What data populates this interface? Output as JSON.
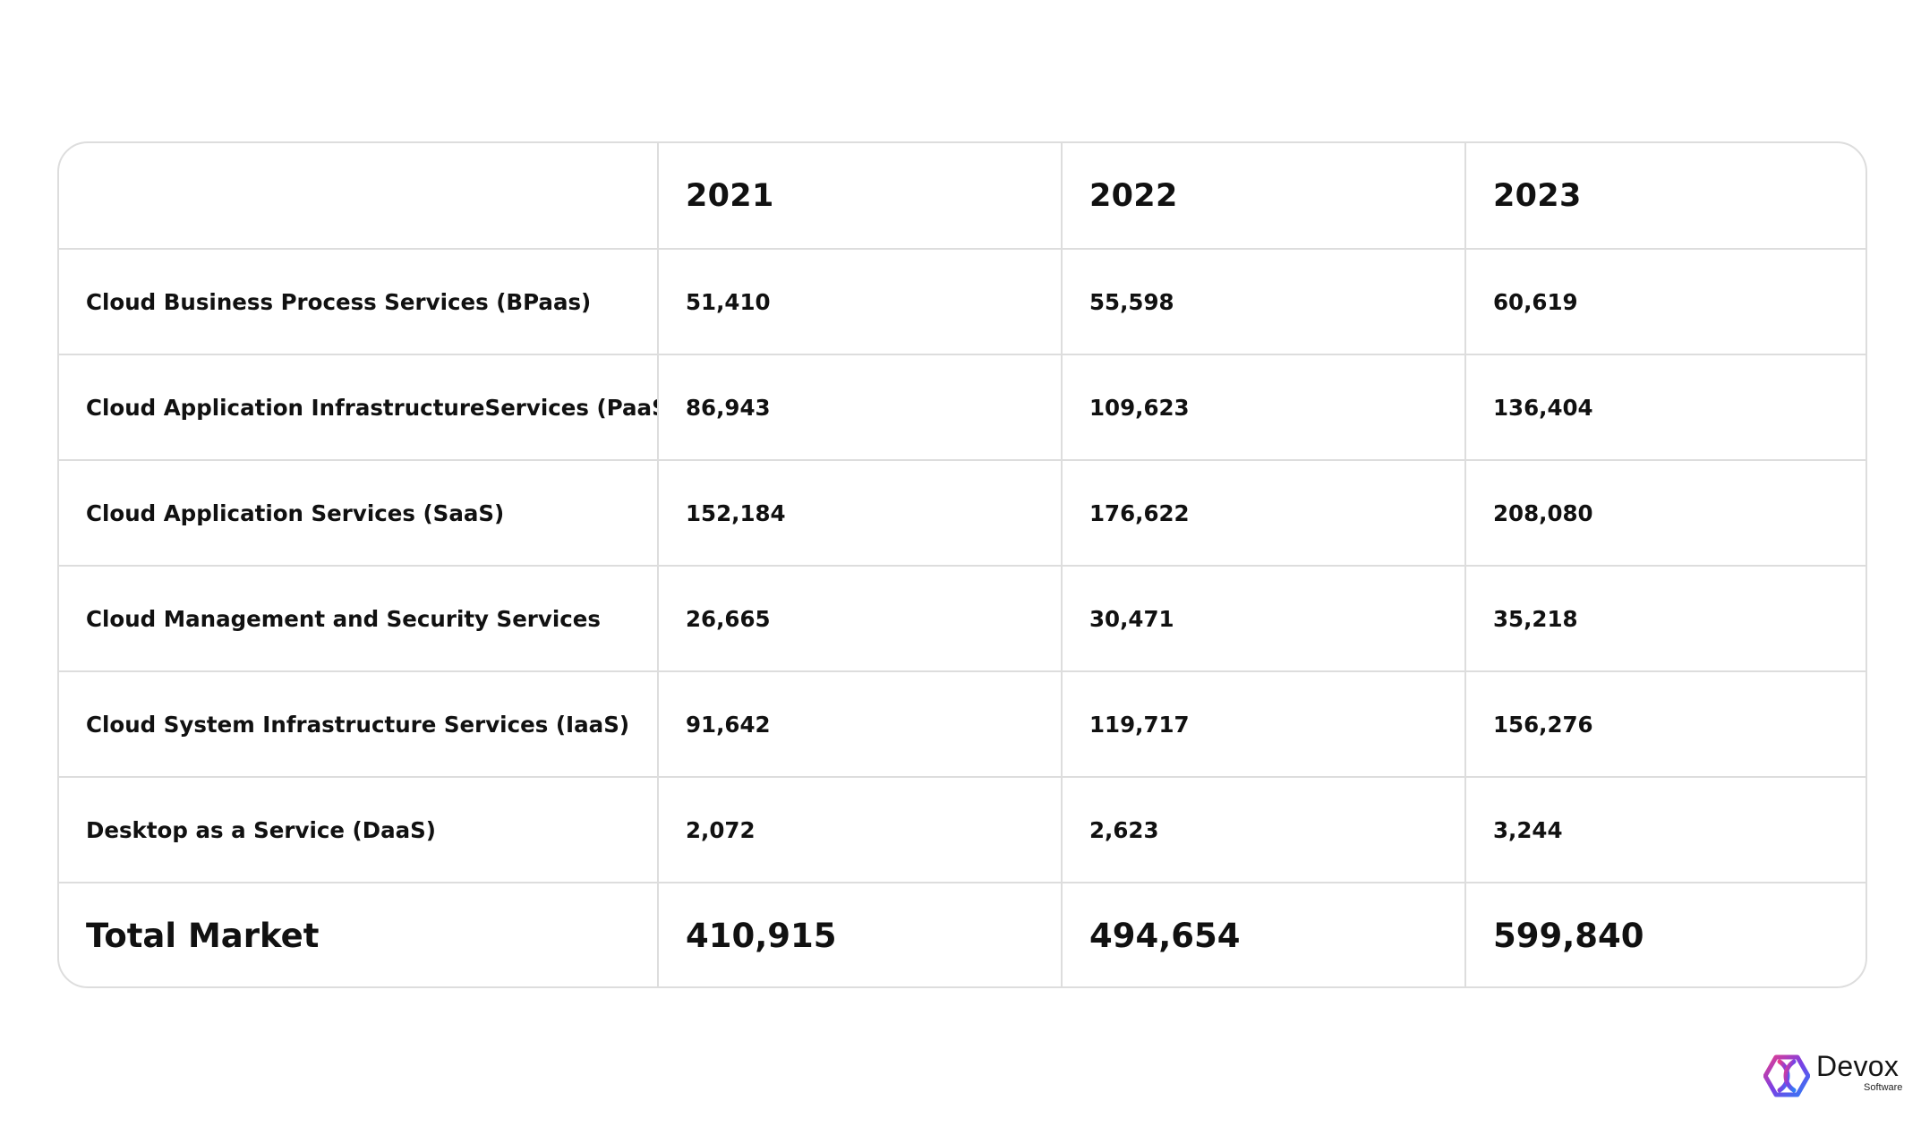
{
  "chart_data": {
    "type": "table",
    "columns": [
      "",
      "2021",
      "2022",
      "2023"
    ],
    "rows": [
      {
        "label": "Cloud Business Process Services (BPaas)",
        "values": [
          "51,410",
          "55,598",
          "60,619"
        ]
      },
      {
        "label": "Cloud Application InfrastructureServices (PaaS)",
        "values": [
          "86,943",
          "109,623",
          "136,404"
        ]
      },
      {
        "label": "Cloud Application Services (SaaS)",
        "values": [
          "152,184",
          "176,622",
          "208,080"
        ]
      },
      {
        "label": "Cloud Management and Security Services",
        "values": [
          "26,665",
          "30,471",
          "35,218"
        ]
      },
      {
        "label": "Cloud System Infrastructure Services (IaaS)",
        "values": [
          "91,642",
          "119,717",
          "156,276"
        ]
      },
      {
        "label": "Desktop as a Service (DaaS)",
        "values": [
          "2,072",
          "2,623",
          "3,244"
        ]
      }
    ],
    "total": {
      "label": "Total Market",
      "values": [
        "410,915",
        "494,654",
        "599,840"
      ]
    }
  },
  "logo": {
    "name": "Devox",
    "sub": "Software",
    "colors": [
      "#e73e8c",
      "#7b3fe4",
      "#2f7df6"
    ]
  }
}
